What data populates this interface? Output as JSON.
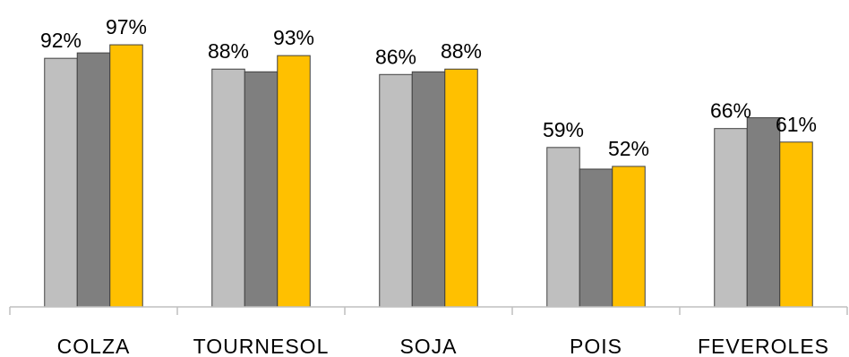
{
  "chart_data": {
    "type": "bar",
    "title": "",
    "xlabel": "",
    "ylabel": "",
    "ylim": [
      0,
      100
    ],
    "grid": false,
    "legend": "none",
    "categories": [
      "COLZA",
      "TOURNESOL",
      "SOJA",
      "POIS",
      "FEVEROLES"
    ],
    "series": [
      {
        "color": "#bfbfbf",
        "values": [
          92,
          88,
          86,
          59,
          66
        ]
      },
      {
        "color": "#7f7f7f",
        "values": [
          94,
          87,
          87,
          51,
          70
        ]
      },
      {
        "color": "#ffc000",
        "values": [
          97,
          93,
          88,
          52,
          61
        ]
      }
    ],
    "data_labels": [
      [
        "92%",
        "88%",
        "86%",
        "59%",
        "66%"
      ],
      [
        null,
        null,
        null,
        null,
        null
      ],
      [
        "97%",
        "93%",
        "88%",
        "52%",
        "61%"
      ]
    ],
    "axis_color": "#bfbfbf",
    "bar_stroke": "#404040"
  }
}
